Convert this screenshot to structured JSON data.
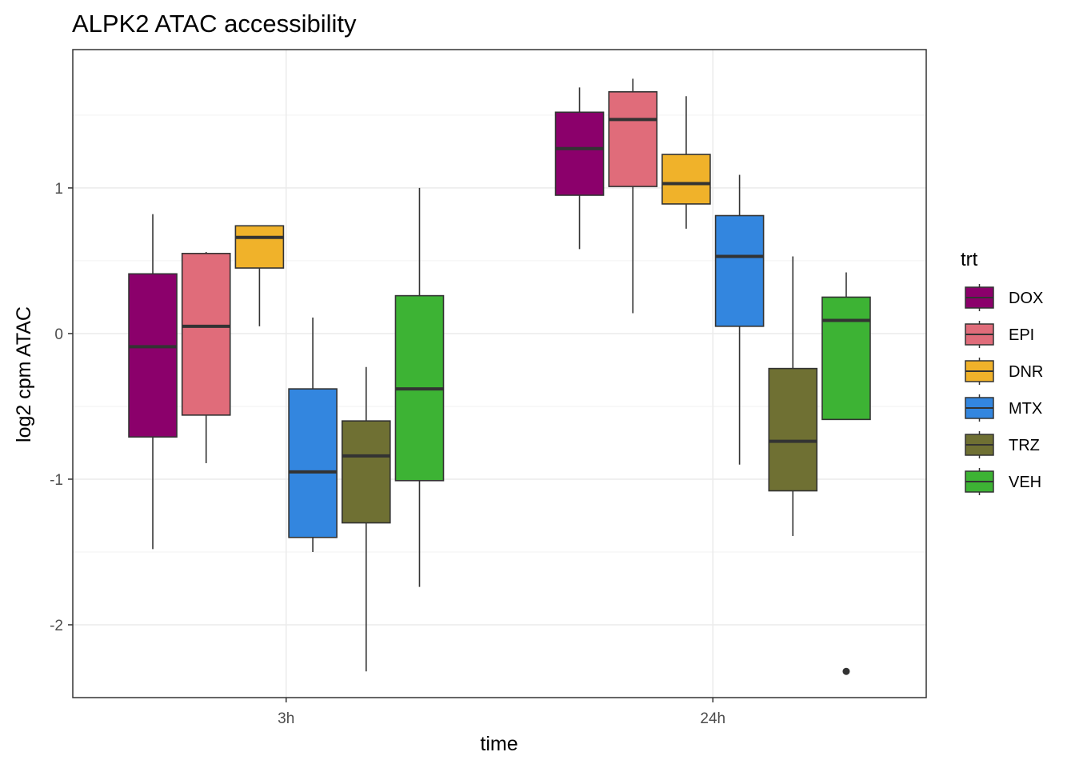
{
  "chart_data": {
    "type": "boxplot",
    "title": "ALPK2 ATAC accessibility",
    "xlabel": "time",
    "ylabel": "log2 cpm ATAC",
    "ylim": [
      -2.5,
      1.95
    ],
    "y_ticks": [
      -2,
      -1,
      0,
      1
    ],
    "y_tick_labels": [
      "-2",
      "-1",
      "0",
      "1"
    ],
    "categories": [
      "3h",
      "24h"
    ],
    "grid": true,
    "legend": {
      "title": "trt",
      "position": "right"
    },
    "series": [
      {
        "name": "DOX",
        "color": "#8B006B",
        "boxes": [
          {
            "min": -1.48,
            "q1": -0.71,
            "median": -0.09,
            "q3": 0.41,
            "max": 0.82,
            "outliers": []
          },
          {
            "min": 0.58,
            "q1": 0.95,
            "median": 1.27,
            "q3": 1.52,
            "max": 1.69,
            "outliers": []
          }
        ]
      },
      {
        "name": "EPI",
        "color": "#E06C7A",
        "boxes": [
          {
            "min": -0.89,
            "q1": -0.56,
            "median": 0.05,
            "q3": 0.55,
            "max": 0.56,
            "outliers": []
          },
          {
            "min": 0.14,
            "q1": 1.01,
            "median": 1.47,
            "q3": 1.66,
            "max": 1.75,
            "outliers": []
          }
        ]
      },
      {
        "name": "DNR",
        "color": "#F0B22A",
        "boxes": [
          {
            "min": 0.05,
            "q1": 0.45,
            "median": 0.66,
            "q3": 0.74,
            "max": 0.74,
            "outliers": []
          },
          {
            "min": 0.72,
            "q1": 0.89,
            "median": 1.03,
            "q3": 1.23,
            "max": 1.63,
            "outliers": []
          }
        ]
      },
      {
        "name": "MTX",
        "color": "#3386DF",
        "boxes": [
          {
            "min": -1.5,
            "q1": -1.4,
            "median": -0.95,
            "q3": -0.38,
            "max": 0.11,
            "outliers": []
          },
          {
            "min": -0.9,
            "q1": 0.05,
            "median": 0.53,
            "q3": 0.81,
            "max": 1.09,
            "outliers": []
          }
        ]
      },
      {
        "name": "TRZ",
        "color": "#6F7033",
        "boxes": [
          {
            "min": -2.32,
            "q1": -1.3,
            "median": -0.84,
            "q3": -0.6,
            "max": -0.23,
            "outliers": []
          },
          {
            "min": -1.39,
            "q1": -1.08,
            "median": -0.74,
            "q3": -0.24,
            "max": 0.53,
            "outliers": []
          }
        ]
      },
      {
        "name": "VEH",
        "color": "#3DB334",
        "boxes": [
          {
            "min": -1.74,
            "q1": -1.01,
            "median": -0.38,
            "q3": 0.26,
            "max": 1.0,
            "outliers": []
          },
          {
            "min": -0.59,
            "q1": -0.59,
            "median": 0.09,
            "q3": 0.25,
            "max": 0.42,
            "outliers": [
              -2.32
            ]
          }
        ]
      }
    ]
  }
}
